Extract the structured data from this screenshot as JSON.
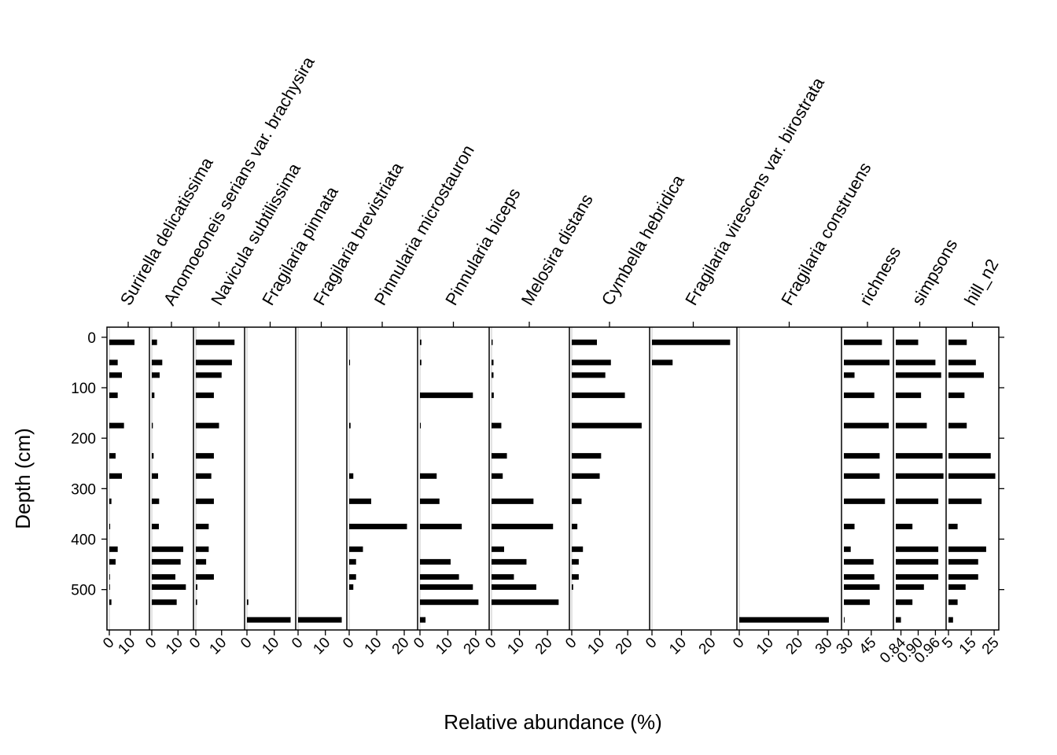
{
  "chart_data": {
    "type": "bar",
    "orientation": "horizontal",
    "xlabel": "Relative abundance (%)",
    "ylabel": "Depth (cm)",
    "ylim": [
      580,
      -20
    ],
    "y_ticks": [
      "0",
      "100",
      "200",
      "300",
      "400",
      "500"
    ],
    "depths": [
      10,
      50,
      75,
      115,
      175,
      235,
      275,
      325,
      375,
      420,
      445,
      475,
      495,
      525,
      560
    ],
    "panels": [
      {
        "name": "Surirella delicatissima",
        "xlim": [
          0,
          18
        ],
        "ticks": [
          0,
          10
        ],
        "tick_labels": [
          "0",
          "10"
        ],
        "values": [
          12,
          4,
          6,
          4,
          7,
          3,
          6,
          1,
          0.4,
          4,
          3,
          0.3,
          0.3,
          1,
          0
        ]
      },
      {
        "name": "Anomoeoneis serians var. brachysira",
        "xlim": [
          0,
          15
        ],
        "ticks": [
          0,
          10
        ],
        "tick_labels": [
          "0",
          "10"
        ],
        "values": [
          2,
          4,
          3,
          1,
          0.4,
          0.7,
          2.4,
          2.8,
          2.7,
          12,
          11,
          9,
          13,
          9.5,
          0
        ]
      },
      {
        "name": "Navicula subtilissima",
        "xlim": [
          0,
          18
        ],
        "ticks": [
          0,
          10
        ],
        "tick_labels": [
          "0",
          "10"
        ],
        "values": [
          15,
          14,
          10,
          7,
          9,
          7,
          6,
          7,
          5,
          5,
          4,
          7,
          0.6,
          0.5,
          0
        ]
      },
      {
        "name": "Fragilaria pinnata",
        "xlim": [
          0,
          17
        ],
        "ticks": [
          0,
          10
        ],
        "tick_labels": [
          "0",
          "10"
        ],
        "values": [
          0,
          0,
          0,
          0,
          0,
          0,
          0,
          0,
          0,
          0,
          0,
          0,
          0,
          0.5,
          16
        ]
      },
      {
        "name": "Fragilaria brevistriata",
        "xlim": [
          0,
          17
        ],
        "ticks": [
          0,
          10
        ],
        "tick_labels": [
          "0",
          "10"
        ],
        "values": [
          0,
          0,
          0,
          0,
          0,
          0,
          0,
          0,
          0,
          0,
          0,
          0,
          0,
          0,
          16
        ]
      },
      {
        "name": "Pinnularia microstauron",
        "xlim": [
          0,
          24
        ],
        "ticks": [
          0,
          10,
          20
        ],
        "tick_labels": [
          "0",
          "10",
          "20"
        ],
        "values": [
          0,
          0.3,
          0,
          0,
          0.5,
          0,
          1.5,
          8,
          21,
          5,
          2.5,
          2.5,
          1.5,
          0,
          0
        ]
      },
      {
        "name": "Pinnularia biceps",
        "xlim": [
          0,
          24
        ],
        "ticks": [
          0,
          10,
          20
        ],
        "tick_labels": [
          "0",
          "10",
          "20"
        ],
        "values": [
          0.5,
          0.5,
          0,
          19,
          0.3,
          0,
          6,
          7,
          15,
          0,
          11,
          14,
          19,
          21,
          2
        ]
      },
      {
        "name": "Melosira distans",
        "xlim": [
          0,
          27
        ],
        "ticks": [
          0,
          10,
          20
        ],
        "tick_labels": [
          "0",
          "10",
          "20"
        ],
        "values": [
          0.4,
          0.7,
          0.7,
          0.8,
          3.5,
          5.5,
          4,
          15,
          22,
          4.5,
          12.5,
          8,
          16,
          24,
          0
        ]
      },
      {
        "name": "Cymbella hebridica",
        "xlim": [
          0,
          27
        ],
        "ticks": [
          0,
          10,
          20
        ],
        "tick_labels": [
          "0",
          "10",
          "20"
        ],
        "values": [
          9,
          14,
          12,
          19,
          25,
          10.5,
          10,
          3.5,
          2,
          4,
          2.5,
          2.5,
          0.5,
          0,
          0
        ]
      },
      {
        "name": "Fragilaria virescens var. birostrata",
        "xlim": [
          0,
          28
        ],
        "ticks": [
          0,
          10,
          20
        ],
        "tick_labels": [
          "0",
          "10",
          "20"
        ],
        "values": [
          26.5,
          7,
          0,
          0,
          0,
          0,
          0,
          0,
          0,
          0,
          0,
          0,
          0,
          0,
          0
        ]
      },
      {
        "name": "Fragilaria construens",
        "xlim": [
          0,
          34
        ],
        "ticks": [
          0,
          10,
          20,
          30
        ],
        "tick_labels": [
          "0",
          "10",
          "20",
          "30"
        ],
        "values": [
          0,
          0,
          0,
          0,
          0,
          0,
          0,
          0,
          0,
          0,
          0,
          0,
          0,
          0,
          30.5
        ]
      },
      {
        "name": "richness",
        "xlim": [
          27,
          58
        ],
        "ticks": [
          30,
          45
        ],
        "tick_labels": [
          "30",
          "45"
        ],
        "values": [
          52,
          57,
          34,
          47,
          56.5,
          50.5,
          50.5,
          54,
          34,
          31.5,
          46.5,
          47,
          50.5,
          44,
          27.5
        ]
      },
      {
        "name": "simpsons",
        "xlim": [
          0.822,
          0.989
        ],
        "ticks": [
          0.84,
          0.9,
          0.96
        ],
        "tick_labels": [
          "0.84",
          "0.90",
          "0.96"
        ],
        "values": [
          0.9,
          0.96,
          0.98,
          0.91,
          0.93,
          0.985,
          0.988,
          0.97,
          0.88,
          0.97,
          0.97,
          0.97,
          0.92,
          0.88,
          0.84
        ]
      },
      {
        "name": "hill_n2",
        "xlim": [
          5,
          26
        ],
        "ticks": [
          5,
          15,
          25
        ],
        "tick_labels": [
          "5",
          "15",
          "25"
        ],
        "values": [
          13,
          17,
          20.5,
          12,
          13,
          23.5,
          25.5,
          19.5,
          9,
          21.5,
          18,
          18,
          12.5,
          9,
          7
        ]
      }
    ]
  }
}
